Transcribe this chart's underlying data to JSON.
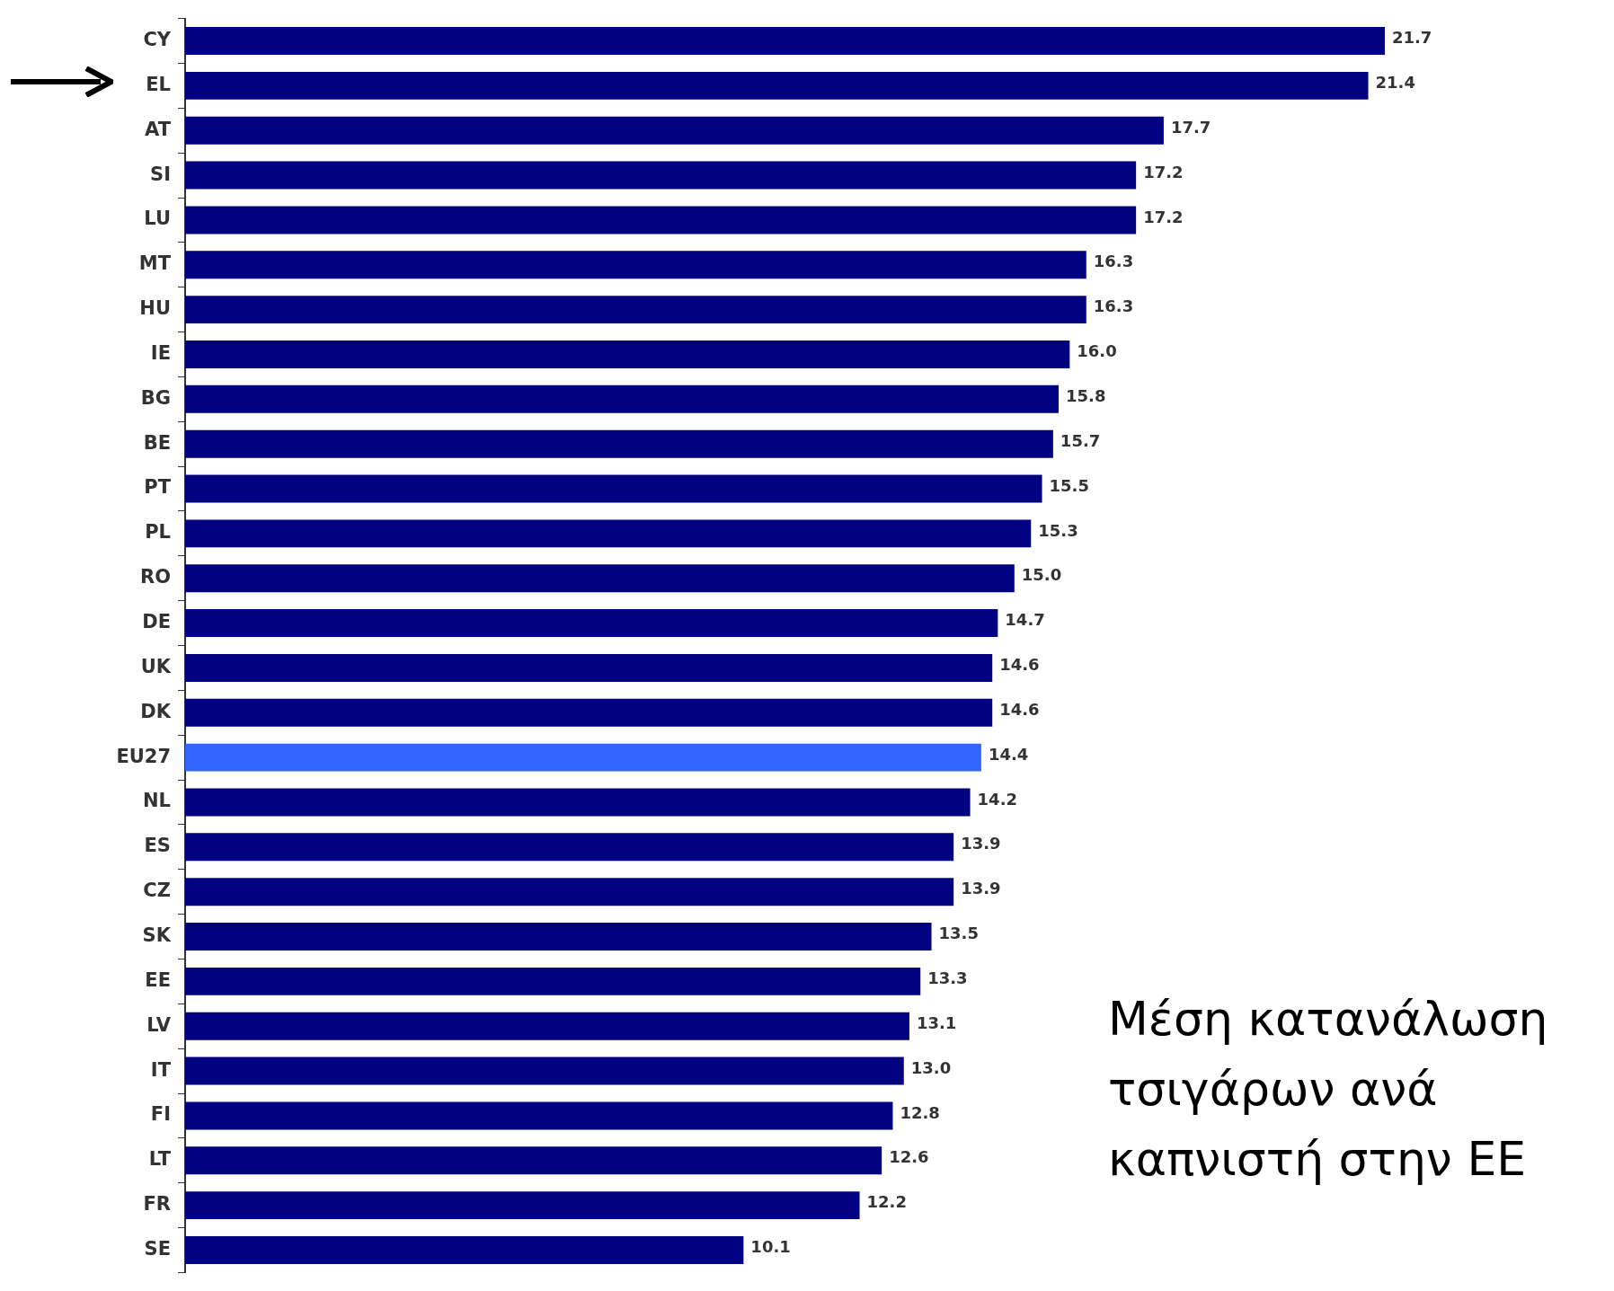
{
  "chart_data": {
    "type": "bar",
    "orientation": "horizontal",
    "categories": [
      "CY",
      "EL",
      "AT",
      "SI",
      "LU",
      "MT",
      "HU",
      "IE",
      "BG",
      "BE",
      "PT",
      "PL",
      "RO",
      "DE",
      "UK",
      "DK",
      "EU27",
      "NL",
      "ES",
      "CZ",
      "SK",
      "EE",
      "LV",
      "IT",
      "FI",
      "LT",
      "FR",
      "SE"
    ],
    "values": [
      21.7,
      21.4,
      17.7,
      17.2,
      17.2,
      16.3,
      16.3,
      16.0,
      15.8,
      15.7,
      15.5,
      15.3,
      15.0,
      14.7,
      14.6,
      14.6,
      14.4,
      14.2,
      13.9,
      13.9,
      13.5,
      13.3,
      13.1,
      13.0,
      12.8,
      12.6,
      12.2,
      10.1
    ],
    "colors": [
      "#000080",
      "#000080",
      "#000080",
      "#000080",
      "#000080",
      "#000080",
      "#000080",
      "#000080",
      "#000080",
      "#000080",
      "#000080",
      "#000080",
      "#000080",
      "#000080",
      "#000080",
      "#000080",
      "#3366ff",
      "#000080",
      "#000080",
      "#000080",
      "#000080",
      "#000080",
      "#000080",
      "#000080",
      "#000080",
      "#000080",
      "#000080",
      "#000080"
    ],
    "value_labels": [
      "21.7",
      "21.4",
      "17.7",
      "17.2",
      "17.2",
      "16.3",
      "16.3",
      "16.0",
      "15.8",
      "15.7",
      "15.5",
      "15.3",
      "15.0",
      "14.7",
      "14.6",
      "14.6",
      "14.4",
      "14.2",
      "13.9",
      "13.9",
      "13.5",
      "13.3",
      "13.1",
      "13.0",
      "12.8",
      "12.6",
      "12.2",
      "10.1"
    ],
    "grid": false,
    "legend": false,
    "tick_labels": "y",
    "annotations": [
      "Μέση κατανάλωση τσιγάρων ανά καπνιστή στην ΕΕ"
    ]
  }
}
